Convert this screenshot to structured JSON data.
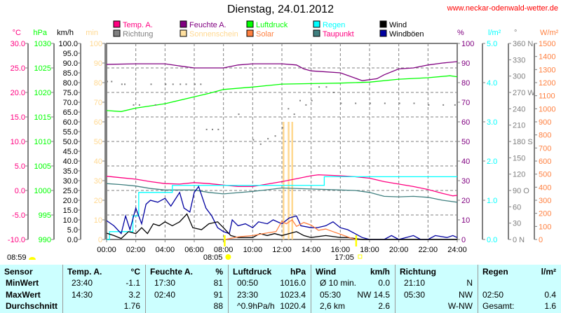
{
  "header": {
    "title": "Dienstag, 24.01.2012",
    "url": "www.neckar-odenwald-wetter.de"
  },
  "legend": [
    {
      "label": "Temp. A.",
      "color": "#ff0080"
    },
    {
      "label": "Feuchte A.",
      "color": "#800080"
    },
    {
      "label": "Luftdruck",
      "color": "#00ff00"
    },
    {
      "label": "Regen",
      "color": "#00ffff"
    },
    {
      "label": "Wind",
      "color": "#000000"
    },
    {
      "label": "Richtung",
      "color": "#808080"
    },
    {
      "label": "Sonnenschein",
      "color": "#ffe0a0"
    },
    {
      "label": "Solar",
      "color": "#ff8040"
    },
    {
      "label": "Taupunkt",
      "color": "#408080"
    },
    {
      "label": "Windböen",
      "color": "#0000a0"
    }
  ],
  "sun": {
    "sunrise": "08:05",
    "sunset": "17:05",
    "sunshine_start": "08:59"
  },
  "chart_data": {
    "type": "line",
    "title": "Dienstag, 24.01.2012",
    "xlabel": "",
    "xlim": [
      0,
      24
    ],
    "x_ticks": [
      "00:00",
      "02:00",
      "04:00",
      "06:00",
      "08:00",
      "10:00",
      "12:00",
      "14:00",
      "16:00",
      "18:00",
      "20:00",
      "22:00",
      "24:00"
    ],
    "axes": {
      "temp": {
        "unit": "°C",
        "ticks": [
          "30.0",
          "25.0",
          "20.0",
          "15.0",
          "10.0",
          "5.0",
          "0.0",
          "-5.0",
          "-10.0"
        ],
        "range": [
          -10,
          30
        ],
        "color": "#ff0080"
      },
      "pressure": {
        "unit": "hPa",
        "ticks": [
          "1030",
          "1025",
          "1020",
          "1015",
          "1010",
          "1005",
          "1000",
          "995",
          "990"
        ],
        "range": [
          990,
          1030
        ],
        "color": "#00ff00"
      },
      "wind": {
        "unit": "km/h",
        "ticks": [
          "100.0",
          "95.0",
          "90.0",
          "85.0",
          "80.0",
          "75.0",
          "70.0",
          "65.0",
          "60.0",
          "55.0",
          "50.0",
          "45.0",
          "40.0",
          "35.0",
          "30.0",
          "25.0",
          "20.0",
          "15.0",
          "10.0",
          "5.0",
          "0.0"
        ],
        "range": [
          0,
          100
        ],
        "color": "#000000"
      },
      "sunshine": {
        "unit": "min",
        "ticks": [
          "100",
          "90",
          "80",
          "70",
          "60",
          "50",
          "40",
          "30",
          "20",
          "10",
          "0"
        ],
        "range": [
          0,
          100
        ],
        "color": "#ffe0a0"
      },
      "humidity": {
        "unit": "%",
        "ticks": [
          "100",
          "90",
          "80",
          "70",
          "60",
          "50",
          "40",
          "30",
          "20",
          "10",
          "0"
        ],
        "range": [
          0,
          100
        ],
        "color": "#800080"
      },
      "rain": {
        "unit": "l/m²",
        "ticks": [
          "5.0",
          "4.0",
          "3.0",
          "2.0",
          "1.0",
          "0.0"
        ],
        "range": [
          0,
          5
        ],
        "color": "#00ffff"
      },
      "direction": {
        "unit": "°",
        "ticks": [
          "360 N",
          "330",
          "300",
          "270 W",
          "240",
          "210",
          "180 S",
          "150",
          "120",
          "90  O",
          "60",
          "30",
          "0    N"
        ],
        "range": [
          0,
          360
        ],
        "color": "#808080"
      },
      "solar": {
        "unit": "W/m²",
        "ticks": [
          "1500",
          "1400",
          "1300",
          "1200",
          "1100",
          "1000",
          "900",
          "800",
          "700",
          "600",
          "500",
          "400",
          "300",
          "200",
          "100",
          "0"
        ],
        "range": [
          0,
          1500
        ],
        "color": "#ff8040"
      }
    },
    "series": [
      {
        "name": "Feuchte A.",
        "axis": "humidity",
        "points": [
          [
            0,
            89.3
          ],
          [
            2,
            89.6
          ],
          [
            4,
            89.6
          ],
          [
            5,
            88.5
          ],
          [
            6,
            87.5
          ],
          [
            8,
            87.5
          ],
          [
            9,
            89
          ],
          [
            10,
            89.6
          ],
          [
            12,
            89.6
          ],
          [
            13,
            89
          ],
          [
            13.5,
            87
          ],
          [
            14,
            86
          ],
          [
            16,
            85
          ],
          [
            17.5,
            81
          ],
          [
            18.5,
            82
          ],
          [
            19,
            84
          ],
          [
            20,
            87
          ],
          [
            21,
            87.5
          ],
          [
            22,
            89
          ],
          [
            23,
            90
          ],
          [
            24,
            90.7
          ]
        ]
      },
      {
        "name": "Luftdruck",
        "axis": "pressure",
        "points": [
          [
            0,
            1016.3
          ],
          [
            1,
            1016.1
          ],
          [
            2,
            1016.8
          ],
          [
            4,
            1017.7
          ],
          [
            6,
            1019.1
          ],
          [
            7,
            1019.8
          ],
          [
            8,
            1020.6
          ],
          [
            10,
            1021.1
          ],
          [
            12,
            1021.7
          ],
          [
            14,
            1021.8
          ],
          [
            16,
            1021.9
          ],
          [
            18,
            1022.1
          ],
          [
            20,
            1022.7
          ],
          [
            22,
            1023.0
          ],
          [
            23.5,
            1023.4
          ],
          [
            24,
            1023.2
          ]
        ]
      },
      {
        "name": "Temp. A.",
        "axis": "temp",
        "points": [
          [
            0,
            2.9
          ],
          [
            1,
            2.6
          ],
          [
            2,
            2.3
          ],
          [
            3,
            1.8
          ],
          [
            4,
            1.4
          ],
          [
            5,
            1.3
          ],
          [
            6,
            1.6
          ],
          [
            7,
            1.4
          ],
          [
            8,
            1.1
          ],
          [
            9,
            0.8
          ],
          [
            10,
            0.8
          ],
          [
            11,
            1.3
          ],
          [
            12,
            1.8
          ],
          [
            13,
            2.4
          ],
          [
            14,
            3.0
          ],
          [
            14.5,
            3.2
          ],
          [
            16,
            3.0
          ],
          [
            17,
            2.8
          ],
          [
            18,
            2.5
          ],
          [
            19,
            1.8
          ],
          [
            20,
            1.3
          ],
          [
            21,
            0.8
          ],
          [
            22,
            0.2
          ],
          [
            23,
            -0.6
          ],
          [
            23.7,
            -1.1
          ],
          [
            24,
            -1.0
          ]
        ]
      },
      {
        "name": "Taupunkt",
        "axis": "temp",
        "points": [
          [
            0,
            1.4
          ],
          [
            1,
            1.2
          ],
          [
            2,
            0.9
          ],
          [
            3,
            0.4
          ],
          [
            4,
            0.1
          ],
          [
            6,
            0.1
          ],
          [
            7,
            -0.4
          ],
          [
            8,
            -0.7
          ],
          [
            10,
            -0.2
          ],
          [
            12,
            0.5
          ],
          [
            14,
            0.3
          ],
          [
            16,
            0.1
          ],
          [
            17,
            0.0
          ],
          [
            18,
            -0.4
          ],
          [
            19,
            -1.2
          ],
          [
            20,
            -1.3
          ],
          [
            21,
            -1.2
          ],
          [
            22,
            -1.4
          ],
          [
            23,
            -2.0
          ],
          [
            24,
            -2.4
          ]
        ]
      },
      {
        "name": "Regen",
        "axis": "rain",
        "step": true,
        "points": [
          [
            0,
            0
          ],
          [
            0.2,
            0.2
          ],
          [
            1.8,
            0.6
          ],
          [
            2.2,
            1.2
          ],
          [
            4.5,
            1.38
          ],
          [
            14.9,
            1.6
          ],
          [
            24,
            1.6
          ]
        ]
      },
      {
        "name": "Windböen",
        "axis": "wind",
        "points": [
          [
            0,
            9.6
          ],
          [
            0.5,
            7
          ],
          [
            1,
            3
          ],
          [
            1.3,
            12
          ],
          [
            1.6,
            5
          ],
          [
            2,
            16
          ],
          [
            2.4,
            8
          ],
          [
            2.7,
            18
          ],
          [
            3,
            20
          ],
          [
            3.5,
            19
          ],
          [
            4,
            21
          ],
          [
            4.4,
            17
          ],
          [
            5,
            24
          ],
          [
            5.3,
            16
          ],
          [
            5.7,
            14
          ],
          [
            6,
            24
          ],
          [
            6.3,
            27
          ],
          [
            6.8,
            16
          ],
          [
            7.2,
            12
          ],
          [
            7.6,
            6
          ],
          [
            8,
            4
          ],
          [
            8.4,
            3
          ],
          [
            8.6,
            10
          ],
          [
            9,
            7
          ],
          [
            9.5,
            8
          ],
          [
            10,
            6
          ],
          [
            10.4,
            9
          ],
          [
            11,
            8
          ],
          [
            11.4,
            10
          ],
          [
            12,
            8
          ],
          [
            12.5,
            11
          ],
          [
            13,
            12
          ],
          [
            13.3,
            7
          ],
          [
            14,
            6
          ],
          [
            14.4,
            6
          ],
          [
            15,
            7
          ],
          [
            15.5,
            9
          ],
          [
            16,
            6
          ],
          [
            16.5,
            5
          ],
          [
            17,
            3
          ],
          [
            17.5,
            1
          ],
          [
            18,
            0
          ],
          [
            19,
            0
          ],
          [
            19.5,
            2
          ],
          [
            20,
            0
          ],
          [
            21,
            2
          ],
          [
            21.5,
            0
          ],
          [
            22,
            0
          ],
          [
            22.5,
            2
          ],
          [
            23.3,
            1
          ],
          [
            23.7,
            2
          ],
          [
            24,
            1
          ]
        ]
      },
      {
        "name": "Wind",
        "axis": "wind",
        "points": [
          [
            0,
            3.2
          ],
          [
            0.5,
            2
          ],
          [
            1,
            0.5
          ],
          [
            1.5,
            4
          ],
          [
            2,
            3
          ],
          [
            2.4,
            6
          ],
          [
            2.8,
            3
          ],
          [
            3.2,
            8
          ],
          [
            3.6,
            7
          ],
          [
            4,
            9
          ],
          [
            4.5,
            7
          ],
          [
            5,
            9
          ],
          [
            5.5,
            13
          ],
          [
            5.9,
            6
          ],
          [
            6.5,
            5
          ],
          [
            7,
            8
          ],
          [
            7.6,
            9
          ],
          [
            8,
            6
          ],
          [
            8.5,
            2
          ],
          [
            9,
            1
          ],
          [
            10,
            1
          ],
          [
            10.5,
            3
          ],
          [
            11,
            2
          ],
          [
            11.5,
            3
          ],
          [
            12,
            2
          ],
          [
            13,
            4
          ],
          [
            13.5,
            2
          ],
          [
            14,
            1
          ],
          [
            15,
            2
          ],
          [
            16,
            1
          ],
          [
            16.5,
            1
          ],
          [
            17,
            0.5
          ],
          [
            17.5,
            0
          ],
          [
            24,
            0
          ]
        ]
      },
      {
        "name": "Solar",
        "axis": "solar",
        "points": [
          [
            8.1,
            0
          ],
          [
            9,
            20
          ],
          [
            10,
            30
          ],
          [
            11,
            50
          ],
          [
            11.6,
            60
          ],
          [
            12,
            140
          ],
          [
            12.3,
            120
          ],
          [
            12.7,
            150
          ],
          [
            13,
            100
          ],
          [
            13.5,
            130
          ],
          [
            14,
            110
          ],
          [
            14.5,
            70
          ],
          [
            15,
            80
          ],
          [
            15.5,
            60
          ],
          [
            16,
            40
          ],
          [
            16.5,
            20
          ],
          [
            17,
            0
          ]
        ]
      }
    ],
    "sunshine_bars": [
      [
        12.05,
        60
      ],
      [
        12.4,
        60
      ],
      [
        12.65,
        60
      ]
    ],
    "direction_points": [
      [
        0,
        290
      ],
      [
        0.3,
        290
      ],
      [
        1,
        285
      ],
      [
        1.2,
        285
      ],
      [
        1.8,
        247
      ],
      [
        2.2,
        247
      ],
      [
        3,
        285
      ],
      [
        3.3,
        247
      ],
      [
        4,
        285
      ],
      [
        4.5,
        285
      ],
      [
        5,
        285
      ],
      [
        5.4,
        285
      ],
      [
        6,
        285
      ],
      [
        6.4,
        285
      ],
      [
        6.8,
        202
      ],
      [
        7.2,
        202
      ],
      [
        7.6,
        202
      ],
      [
        9,
        230
      ],
      [
        10,
        183
      ],
      [
        10.5,
        175
      ],
      [
        11,
        185
      ],
      [
        11.5,
        190
      ],
      [
        12,
        205
      ],
      [
        12.4,
        240
      ],
      [
        12.8,
        230
      ],
      [
        13.2,
        255
      ],
      [
        13.6,
        247
      ],
      [
        14,
        255
      ],
      [
        14.5,
        280
      ],
      [
        15,
        280
      ],
      [
        15.5,
        270
      ],
      [
        16,
        250
      ],
      [
        17,
        250
      ],
      [
        18,
        250
      ],
      [
        19,
        250
      ],
      [
        20,
        250
      ],
      [
        21,
        250
      ],
      [
        22,
        247
      ],
      [
        23,
        247
      ],
      [
        23.8,
        247
      ]
    ]
  },
  "table": {
    "headers": [
      [
        "Sensor",
        ""
      ],
      [
        "Temp. A.",
        "°C"
      ],
      [
        "Feuchte A.",
        "%"
      ],
      [
        "Luftdruck",
        "hPa"
      ],
      [
        "Wind",
        "km/h"
      ],
      [
        "Richtung",
        ""
      ],
      [
        "Regen",
        "l/m²"
      ]
    ],
    "rows": [
      [
        "MinWert",
        "23:40",
        "-1.1",
        "17:30",
        "81",
        "00:50",
        "1016.0",
        "Ø 10 min.",
        "0.0",
        "21:10",
        "N",
        "",
        ""
      ],
      [
        "MaxWert",
        "14:30",
        "3.2",
        "02:40",
        "91",
        "23:30",
        "1023.4",
        "05:30",
        "NW 14.5",
        "05:30",
        "NW",
        "02:50",
        "0.4"
      ],
      [
        "Durchschnitt",
        "",
        "1.76",
        "",
        "88",
        "^0.9hPa/h",
        "1020.4",
        "2,6 km",
        "2.6",
        "",
        "W-NW",
        "Gesamt:",
        "1.6"
      ]
    ]
  }
}
